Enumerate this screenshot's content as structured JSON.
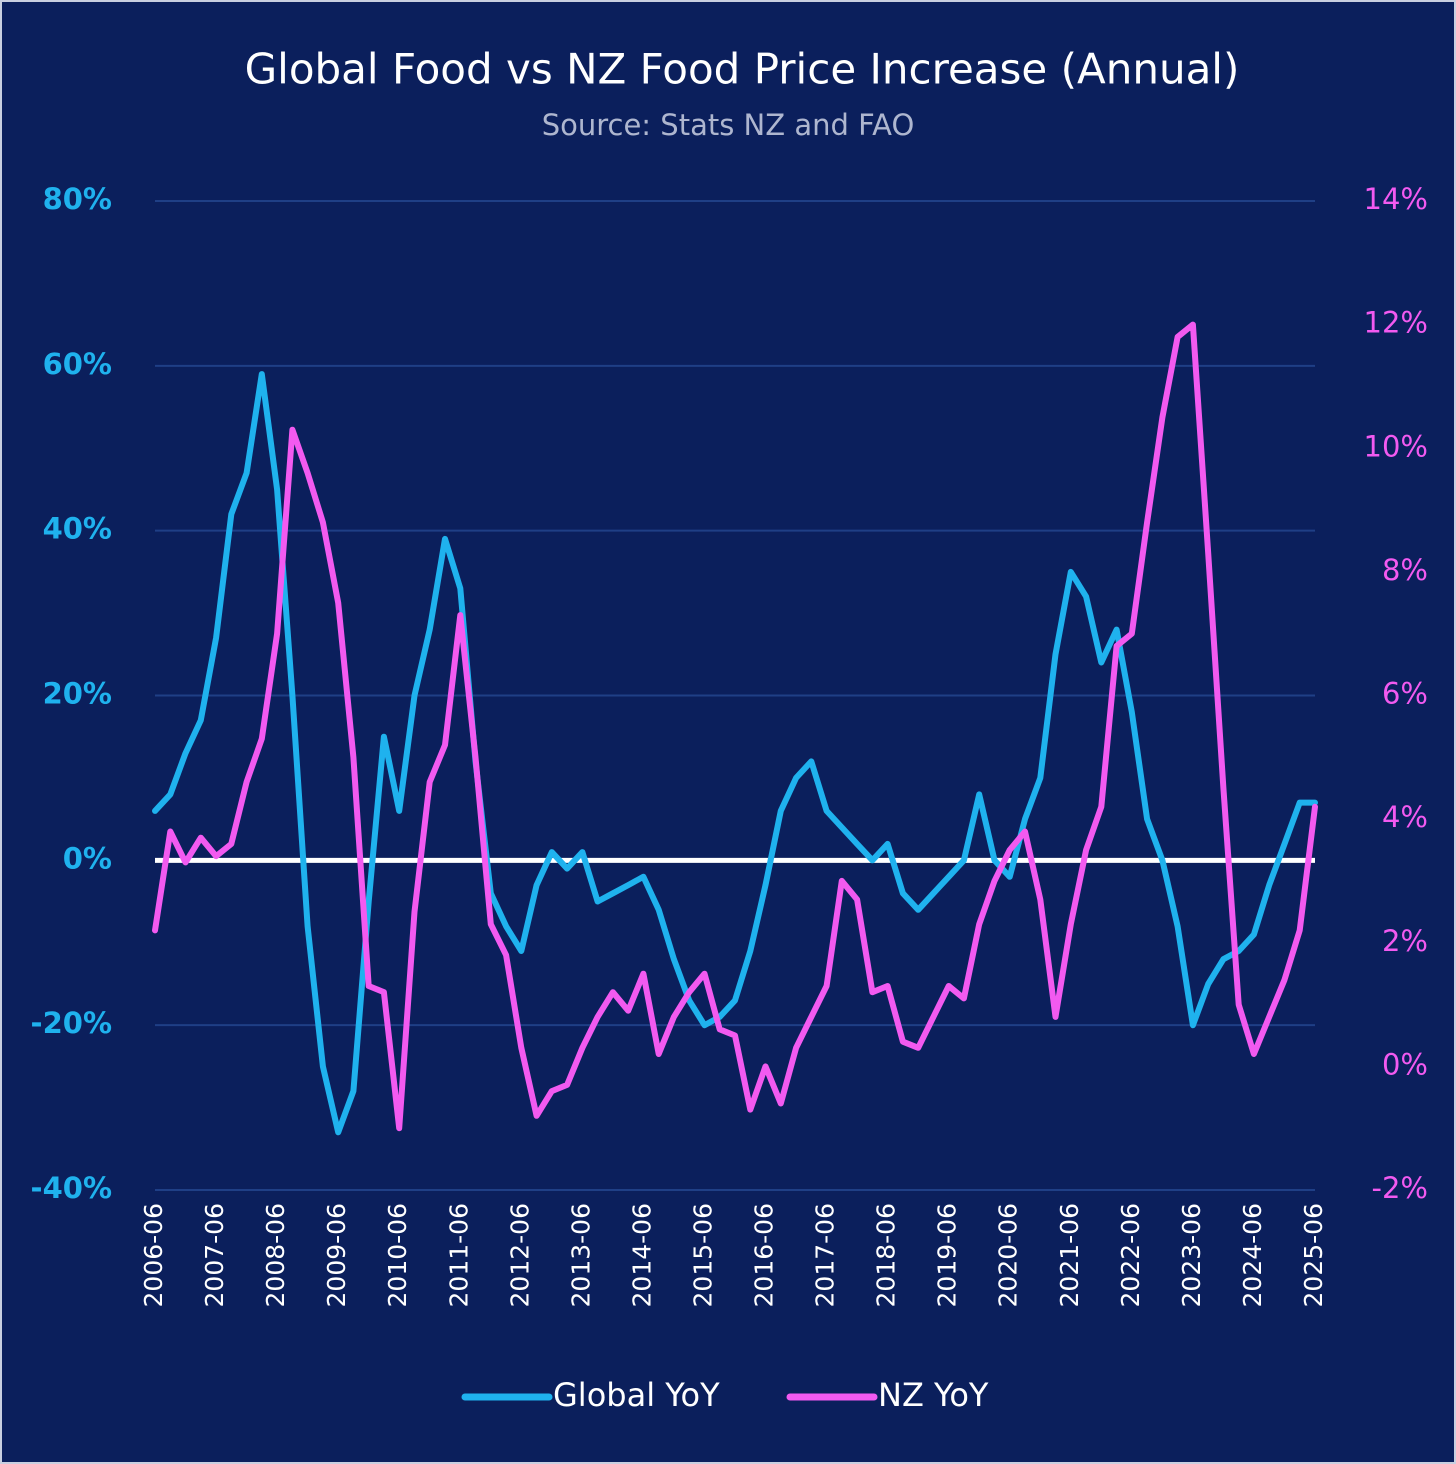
{
  "chart_data": {
    "type": "line",
    "title": "Global Food vs NZ Food Price Increase (Annual)",
    "subtitle": "Source: Stats NZ and FAO",
    "categories": [
      "2006-06",
      null,
      null,
      null,
      "2007-06",
      null,
      null,
      null,
      "2008-06",
      null,
      null,
      null,
      "2009-06",
      null,
      null,
      null,
      "2010-06",
      null,
      null,
      null,
      "2011-06",
      null,
      null,
      null,
      "2012-06",
      null,
      null,
      null,
      "2013-06",
      null,
      null,
      null,
      "2014-06",
      null,
      null,
      null,
      "2015-06",
      null,
      null,
      null,
      "2016-06",
      null,
      null,
      null,
      "2017-06",
      null,
      null,
      null,
      "2018-06",
      null,
      null,
      null,
      "2019-06",
      null,
      null,
      null,
      "2020-06",
      null,
      null,
      null,
      "2021-06",
      null,
      null,
      null,
      "2022-06",
      null,
      null,
      null,
      "2023-06",
      null,
      null,
      null,
      "2024-06",
      null,
      null,
      null,
      "2025-06"
    ],
    "series": [
      {
        "name": "Global YoY",
        "color": "#1fb2ee",
        "axis": "y",
        "values": [
          6,
          8,
          13,
          17,
          27,
          42,
          47,
          59,
          45,
          20,
          -8,
          -25,
          -33,
          -28,
          -5,
          15,
          6,
          20,
          28,
          39,
          33,
          12,
          -4,
          -8,
          -11,
          -3,
          1,
          -1,
          1,
          -5,
          -4,
          -3,
          -2,
          -6,
          -12,
          -17,
          -20,
          -19,
          -17,
          -11,
          -3,
          6,
          10,
          12,
          6,
          4,
          2,
          0,
          2,
          -4,
          -6,
          -4,
          -2,
          0,
          8,
          0,
          -2,
          5,
          10,
          25,
          35,
          32,
          24,
          28,
          18,
          5,
          0,
          -8,
          -20,
          -15,
          -12,
          -11,
          -9,
          -3,
          2,
          7,
          7
        ]
      },
      {
        "name": "NZ YoY",
        "color": "#f25af0",
        "axis": "y2",
        "values": [
          2.2,
          3.8,
          3.3,
          3.7,
          3.4,
          3.6,
          4.6,
          5.3,
          7.0,
          10.3,
          9.6,
          8.8,
          7.5,
          5.0,
          1.3,
          1.2,
          -1.0,
          2.5,
          4.6,
          5.2,
          7.3,
          5.0,
          2.3,
          1.8,
          0.3,
          -0.8,
          -0.4,
          -0.3,
          0.3,
          0.8,
          1.2,
          0.9,
          1.5,
          0.2,
          0.8,
          1.2,
          1.5,
          0.6,
          0.5,
          -0.7,
          0.0,
          -0.6,
          0.3,
          0.8,
          1.3,
          3.0,
          2.7,
          1.2,
          1.3,
          0.4,
          0.3,
          0.8,
          1.3,
          1.1,
          2.3,
          3.0,
          3.5,
          3.8,
          2.7,
          0.8,
          2.3,
          3.5,
          4.2,
          6.8,
          7.0,
          8.8,
          10.5,
          11.8,
          12.0,
          8.3,
          4.5,
          1.0,
          0.2,
          0.8,
          1.4,
          2.2,
          4.2
        ]
      }
    ],
    "ylim": [
      -40,
      80
    ],
    "yticks": [
      {
        "value": -40,
        "label": "-40%"
      },
      {
        "value": -20,
        "label": "-20%"
      },
      {
        "value": 0,
        "label": "0%"
      },
      {
        "value": 20,
        "label": "20%"
      },
      {
        "value": 40,
        "label": "40%"
      },
      {
        "value": 60,
        "label": "60%"
      },
      {
        "value": 80,
        "label": "80%"
      }
    ],
    "y2lim": [
      -2,
      14
    ],
    "y2ticks": [
      {
        "value": -2,
        "label": "-2%"
      },
      {
        "value": 0,
        "label": "0%"
      },
      {
        "value": 2,
        "label": "2%"
      },
      {
        "value": 4,
        "label": "4%"
      },
      {
        "value": 6,
        "label": "6%"
      },
      {
        "value": 8,
        "label": "8%"
      },
      {
        "value": 10,
        "label": "10%"
      },
      {
        "value": 12,
        "label": "12%"
      },
      {
        "value": 14,
        "label": "14%"
      }
    ],
    "grid": true,
    "legend": "bottom"
  }
}
